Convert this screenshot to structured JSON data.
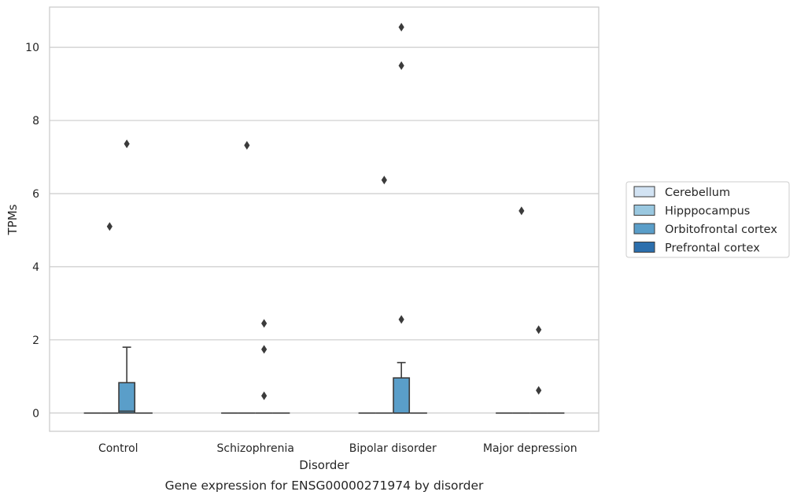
{
  "chart_data": {
    "type": "box",
    "caption": "Gene expression for ENSG00000271974 by disorder",
    "xlabel": "Disorder",
    "ylabel": "TPMs",
    "ylim": [
      -0.5,
      11.1
    ],
    "yticks": [
      0,
      2,
      4,
      6,
      8,
      10
    ],
    "grid": "horizontal",
    "legend_position": "right",
    "categories": [
      "Control",
      "Schizophrenia",
      "Bipolar disorder",
      "Major depression"
    ],
    "series": [
      {
        "name": "Cerebellum",
        "color": "#d2e3f3",
        "boxes": [
          {
            "q1": 0,
            "median": 0,
            "q3": 0,
            "whisker_low": 0,
            "whisker_high": 0,
            "outliers": []
          },
          {
            "q1": 0,
            "median": 0,
            "q3": 0,
            "whisker_low": 0,
            "whisker_high": 0,
            "outliers": []
          },
          {
            "q1": 0,
            "median": 0,
            "q3": 0,
            "whisker_low": 0,
            "whisker_high": 0,
            "outliers": []
          },
          {
            "q1": 0,
            "median": 0,
            "q3": 0,
            "whisker_low": 0,
            "whisker_high": 0,
            "outliers": []
          }
        ]
      },
      {
        "name": "Hipppocampus",
        "color": "#9ac8e0",
        "boxes": [
          {
            "q1": 0,
            "median": 0,
            "q3": 0,
            "whisker_low": 0,
            "whisker_high": 0,
            "outliers": [
              5.1
            ]
          },
          {
            "q1": 0,
            "median": 0,
            "q3": 0,
            "whisker_low": 0,
            "whisker_high": 0,
            "outliers": [
              7.32
            ]
          },
          {
            "q1": 0,
            "median": 0,
            "q3": 0,
            "whisker_low": 0,
            "whisker_high": 0,
            "outliers": [
              6.37
            ]
          },
          {
            "q1": 0,
            "median": 0,
            "q3": 0,
            "whisker_low": 0,
            "whisker_high": 0,
            "outliers": [
              5.53
            ]
          }
        ]
      },
      {
        "name": "Orbitofrontal cortex",
        "color": "#5a9ec9",
        "boxes": [
          {
            "q1": 0,
            "median": 0.05,
            "q3": 0.83,
            "whisker_low": 0,
            "whisker_high": 1.8,
            "outliers": [
              7.36
            ]
          },
          {
            "q1": 0,
            "median": 0,
            "q3": 0,
            "whisker_low": 0,
            "whisker_high": 0,
            "outliers": [
              0.47,
              1.74,
              2.45
            ]
          },
          {
            "q1": 0,
            "median": 0,
            "q3": 0.96,
            "whisker_low": 0,
            "whisker_high": 1.38,
            "outliers": [
              2.56,
              9.5,
              10.55
            ]
          },
          {
            "q1": 0,
            "median": 0,
            "q3": 0,
            "whisker_low": 0,
            "whisker_high": 0,
            "outliers": [
              0.62,
              2.28
            ]
          }
        ]
      },
      {
        "name": "Prefrontal cortex",
        "color": "#2c6fad",
        "boxes": [
          {
            "q1": 0,
            "median": 0,
            "q3": 0,
            "whisker_low": 0,
            "whisker_high": 0,
            "outliers": []
          },
          {
            "q1": 0,
            "median": 0,
            "q3": 0,
            "whisker_low": 0,
            "whisker_high": 0,
            "outliers": []
          },
          {
            "q1": 0,
            "median": 0,
            "q3": 0,
            "whisker_low": 0,
            "whisker_high": 0,
            "outliers": []
          },
          {
            "q1": 0,
            "median": 0,
            "q3": 0,
            "whisker_low": 0,
            "whisker_high": 0,
            "outliers": []
          }
        ]
      }
    ]
  }
}
